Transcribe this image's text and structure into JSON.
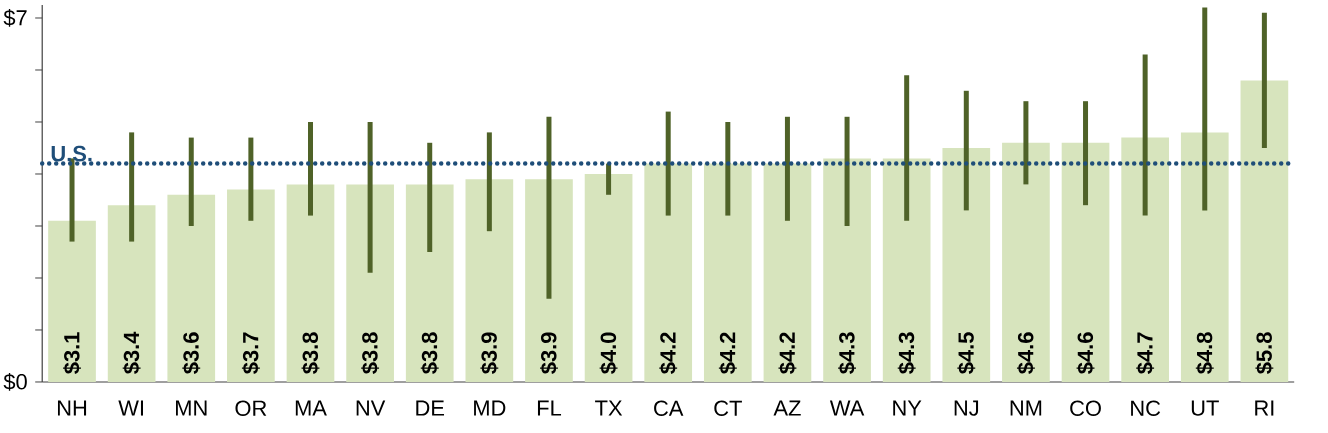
{
  "chart_data": {
    "type": "bar",
    "categories": [
      "NH",
      "WI",
      "MN",
      "OR",
      "MA",
      "NV",
      "DE",
      "MD",
      "FL",
      "TX",
      "CA",
      "CT",
      "AZ",
      "WA",
      "NY",
      "NJ",
      "NM",
      "CO",
      "NC",
      "UT",
      "RI"
    ],
    "values": [
      3.1,
      3.4,
      3.6,
      3.7,
      3.8,
      3.8,
      3.8,
      3.9,
      3.9,
      4.0,
      4.2,
      4.2,
      4.2,
      4.3,
      4.3,
      4.5,
      4.6,
      4.6,
      4.7,
      4.8,
      5.8
    ],
    "value_labels": [
      "$3.1",
      "$3.4",
      "$3.6",
      "$3.7",
      "$3.8",
      "$3.8",
      "$3.8",
      "$3.9",
      "$3.9",
      "$4.0",
      "$4.2",
      "$4.2",
      "$4.2",
      "$4.3",
      "$4.3",
      "$4.5",
      "$4.6",
      "$4.6",
      "$4.7",
      "$4.8",
      "$5.8"
    ],
    "errors": [
      [
        2.7,
        4.3
      ],
      [
        2.7,
        4.8
      ],
      [
        3.0,
        4.7
      ],
      [
        3.1,
        4.7
      ],
      [
        3.2,
        5.0
      ],
      [
        2.1,
        5.0
      ],
      [
        2.5,
        4.6
      ],
      [
        2.9,
        4.8
      ],
      [
        1.6,
        5.1
      ],
      [
        3.6,
        4.2
      ],
      [
        3.2,
        5.2
      ],
      [
        3.2,
        5.0
      ],
      [
        3.1,
        5.1
      ],
      [
        3.0,
        5.1
      ],
      [
        3.1,
        5.9
      ],
      [
        3.3,
        5.6
      ],
      [
        3.8,
        5.4
      ],
      [
        3.4,
        5.4
      ],
      [
        3.2,
        6.3
      ],
      [
        3.3,
        7.2
      ],
      [
        4.5,
        7.1
      ]
    ],
    "color": "#d7e4bd",
    "ylim": [
      0,
      7.25
    ],
    "yticks": [
      {
        "value": 0,
        "label": "$0"
      },
      {
        "value": 1,
        "label": null
      },
      {
        "value": 2,
        "label": null
      },
      {
        "value": 3,
        "label": null
      },
      {
        "value": 4,
        "label": null
      },
      {
        "value": 5,
        "label": null
      },
      {
        "value": 6,
        "label": null
      },
      {
        "value": 7,
        "label": "$7"
      }
    ],
    "ref_lines": [
      {
        "axis": "y",
        "value": 4.2,
        "label": "U.S.",
        "color": "#1f4e79",
        "line_style": "dotted"
      }
    ],
    "grid": false
  }
}
